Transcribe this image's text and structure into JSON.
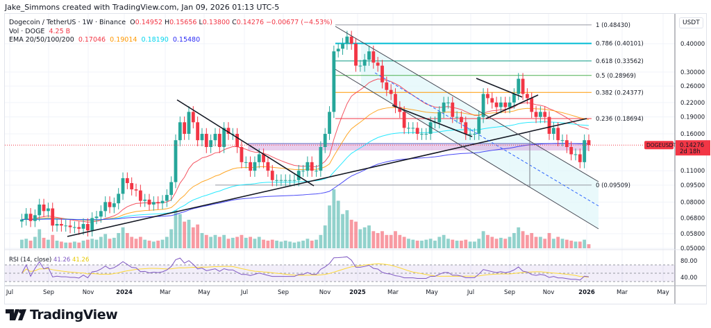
{
  "credit": "Jake_Simmons created with TradingView.com, Jan 09, 2026 01:13 UTC-5",
  "legend": {
    "symbol": "Dogecoin / TetherUS · 1W · Binance",
    "open_label": "O",
    "open": "0.14952",
    "high_label": "H",
    "high": "0.15656",
    "low_label": "L",
    "low": "0.13800",
    "close_label": "C",
    "close": "0.14276",
    "change": "−0.00677 (−4.53%)",
    "vol_label": "Vol · DOGE",
    "vol": "4.25 B",
    "ema_label": "EMA 20/50/100/200",
    "ema20": "0.17046",
    "ema50": "0.19014",
    "ema100": "0.18190",
    "ema200": "0.15480"
  },
  "colors": {
    "up": "#26a69a",
    "down": "#f23645",
    "ema20": "#f23645",
    "ema50": "#ff9800",
    "ema100": "#00e5ff",
    "ema200": "#2a2af5",
    "rsi": "#7e57c2",
    "rsi_ma": "#fdd835"
  },
  "axis": {
    "currency": "USDT",
    "price_ticks": [
      "0.40000",
      "0.30000",
      "0.26000",
      "0.22000",
      "0.19000",
      "0.16000",
      "0.11000",
      "0.09500",
      "0.08000",
      "0.06800",
      "0.05800",
      "0.05000"
    ],
    "rsi_ticks": [
      "80.00",
      "40.00"
    ],
    "time_ticks": [
      "Jul",
      "Sep",
      "Nov",
      "2024",
      "Mar",
      "May",
      "Jul",
      "Sep",
      "Nov",
      "2025",
      "Mar",
      "May",
      "Jul",
      "Sep",
      "Nov",
      "2026",
      "Mar",
      "May"
    ]
  },
  "last_price": {
    "symbol": "DOGEUSDT",
    "price": "0.14276",
    "countdown": "2d 18h"
  },
  "rsi": {
    "label": "RSI (14, close)",
    "value": "41.26",
    "ma": "41.26"
  },
  "fib": [
    {
      "level": "1",
      "price": "0.48430",
      "color": "#9598a1"
    },
    {
      "level": "0.786",
      "price": "0.40101",
      "color": "#00bcd4"
    },
    {
      "level": "0.618",
      "price": "0.33562",
      "color": "#089981"
    },
    {
      "level": "0.5",
      "price": "0.28969",
      "color": "#4caf50"
    },
    {
      "level": "0.382",
      "price": "0.24377",
      "color": "#ff9800"
    },
    {
      "level": "0.236",
      "price": "0.18694",
      "color": "#f23645"
    },
    {
      "level": "0",
      "price": "0.09509",
      "color": "#9598a1"
    }
  ],
  "brand": "TradingView",
  "chart_data": {
    "type": "candlestick",
    "scale": "log",
    "interval": "1W",
    "first_week": "2023-06-26",
    "last_week": "2026-01-05",
    "closes": [
      0.067,
      0.071,
      0.066,
      0.07,
      0.078,
      0.073,
      0.075,
      0.063,
      0.064,
      0.063,
      0.063,
      0.062,
      0.062,
      0.061,
      0.064,
      0.06,
      0.068,
      0.069,
      0.073,
      0.08,
      0.076,
      0.079,
      0.087,
      0.102,
      0.097,
      0.091,
      0.09,
      0.081,
      0.082,
      0.078,
      0.08,
      0.079,
      0.081,
      0.086,
      0.098,
      0.15,
      0.18,
      0.16,
      0.2,
      0.18,
      0.15,
      0.16,
      0.14,
      0.15,
      0.16,
      0.14,
      0.17,
      0.16,
      0.16,
      0.14,
      0.12,
      0.12,
      0.11,
      0.12,
      0.13,
      0.12,
      0.11,
      0.1,
      0.1,
      0.1,
      0.1,
      0.1,
      0.1,
      0.11,
      0.11,
      0.12,
      0.11,
      0.11,
      0.14,
      0.16,
      0.2,
      0.37,
      0.38,
      0.4,
      0.43,
      0.4,
      0.32,
      0.32,
      0.34,
      0.37,
      0.33,
      0.32,
      0.27,
      0.25,
      0.24,
      0.21,
      0.2,
      0.17,
      0.17,
      0.17,
      0.16,
      0.16,
      0.16,
      0.18,
      0.18,
      0.2,
      0.22,
      0.22,
      0.19,
      0.19,
      0.18,
      0.16,
      0.16,
      0.16,
      0.19,
      0.24,
      0.23,
      0.22,
      0.21,
      0.22,
      0.21,
      0.22,
      0.24,
      0.28,
      0.24,
      0.23,
      0.2,
      0.19,
      0.2,
      0.19,
      0.16,
      0.17,
      0.15,
      0.15,
      0.14,
      0.13,
      0.13,
      0.12,
      0.15,
      0.14276
    ],
    "volumes_b": [
      9,
      10,
      8,
      12,
      20,
      11,
      9,
      14,
      8,
      7,
      6,
      6,
      7,
      6,
      8,
      9,
      10,
      9,
      12,
      15,
      10,
      11,
      16,
      22,
      16,
      12,
      10,
      12,
      9,
      8,
      7,
      8,
      9,
      12,
      20,
      40,
      36,
      28,
      30,
      22,
      25,
      16,
      14,
      12,
      14,
      12,
      14,
      10,
      11,
      12,
      14,
      11,
      12,
      10,
      12,
      9,
      8,
      9,
      8,
      7,
      8,
      7,
      6,
      7,
      8,
      10,
      8,
      9,
      14,
      24,
      45,
      62,
      50,
      36,
      40,
      30,
      28,
      20,
      22,
      24,
      18,
      16,
      18,
      14,
      14,
      18,
      14,
      12,
      10,
      9,
      8,
      8,
      9,
      10,
      8,
      12,
      14,
      10,
      9,
      8,
      8,
      9,
      7,
      7,
      10,
      18,
      14,
      12,
      10,
      11,
      10,
      12,
      16,
      22,
      18,
      14,
      16,
      12,
      12,
      10,
      16,
      10,
      12,
      10,
      9,
      8,
      7,
      7,
      9,
      4.25
    ]
  }
}
